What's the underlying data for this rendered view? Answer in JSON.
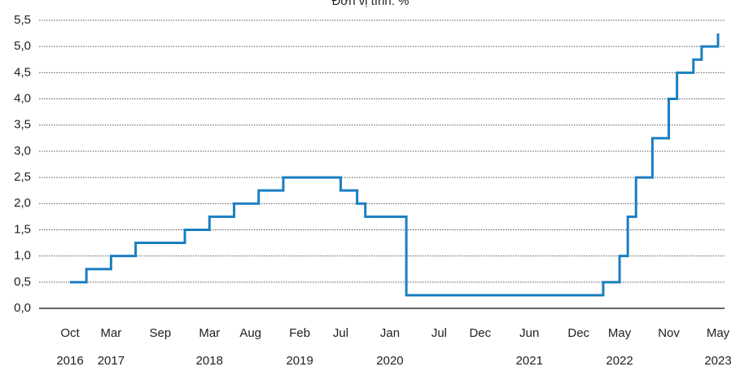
{
  "chart_data": {
    "type": "step",
    "title": "Đơn vị tính: %",
    "xlim": [
      "2016-10",
      "2023-05"
    ],
    "xticks": [
      {
        "value": "2016-10",
        "label": "Oct",
        "year": "2016"
      },
      {
        "value": "2017-03",
        "label": "Mar",
        "year": "2017"
      },
      {
        "value": "2017-09",
        "label": "Sep"
      },
      {
        "value": "2018-03",
        "label": "Mar",
        "year": "2018"
      },
      {
        "value": "2018-08",
        "label": "Aug"
      },
      {
        "value": "2019-02",
        "label": "Feb",
        "year": "2019"
      },
      {
        "value": "2019-07",
        "label": "Jul"
      },
      {
        "value": "2020-01",
        "label": "Jan",
        "year": "2020"
      },
      {
        "value": "2020-07",
        "label": "Jul"
      },
      {
        "value": "2020-12",
        "label": "Dec"
      },
      {
        "value": "2021-06",
        "label": "Jun",
        "year": "2021"
      },
      {
        "value": "2021-12",
        "label": "Dec"
      },
      {
        "value": "2022-05",
        "label": "May",
        "year": "2022"
      },
      {
        "value": "2022-11",
        "label": "Nov"
      },
      {
        "value": "2023-05",
        "label": "May",
        "year": "2023"
      }
    ],
    "ylim": [
      0,
      5.5
    ],
    "yticks": [
      {
        "value": 0,
        "label": "0,0"
      },
      {
        "value": 0.5,
        "label": "0,5"
      },
      {
        "value": 1,
        "label": "1,0"
      },
      {
        "value": 1.5,
        "label": "1,5"
      },
      {
        "value": 2,
        "label": "2,0"
      },
      {
        "value": 2.5,
        "label": "2,5"
      },
      {
        "value": 3,
        "label": "3,0"
      },
      {
        "value": 3.5,
        "label": "3,5"
      },
      {
        "value": 4,
        "label": "4,0"
      },
      {
        "value": 4.5,
        "label": "4,5"
      },
      {
        "value": 5,
        "label": "5,0"
      },
      {
        "value": 5.5,
        "label": "5,5"
      }
    ],
    "grid": true,
    "x": [
      "2016-10",
      "2016-12",
      "2017-03",
      "2017-06",
      "2017-12",
      "2018-03",
      "2018-06",
      "2018-09",
      "2018-12",
      "2019-07",
      "2019-09",
      "2019-10",
      "2020-03",
      "2020-03",
      "2022-03",
      "2022-05",
      "2022-06",
      "2022-07",
      "2022-09",
      "2022-11",
      "2022-12",
      "2023-02",
      "2023-03",
      "2023-05"
    ],
    "series": [
      {
        "color": "#1a7fc1",
        "values": [
          0.5,
          0.75,
          1,
          1.25,
          1.5,
          1.75,
          2,
          2.25,
          2.5,
          2.25,
          2,
          1.75,
          1.25,
          0.25,
          0.5,
          1,
          1.75,
          2.5,
          3.25,
          4,
          4.5,
          4.75,
          5,
          5.25
        ]
      }
    ]
  }
}
